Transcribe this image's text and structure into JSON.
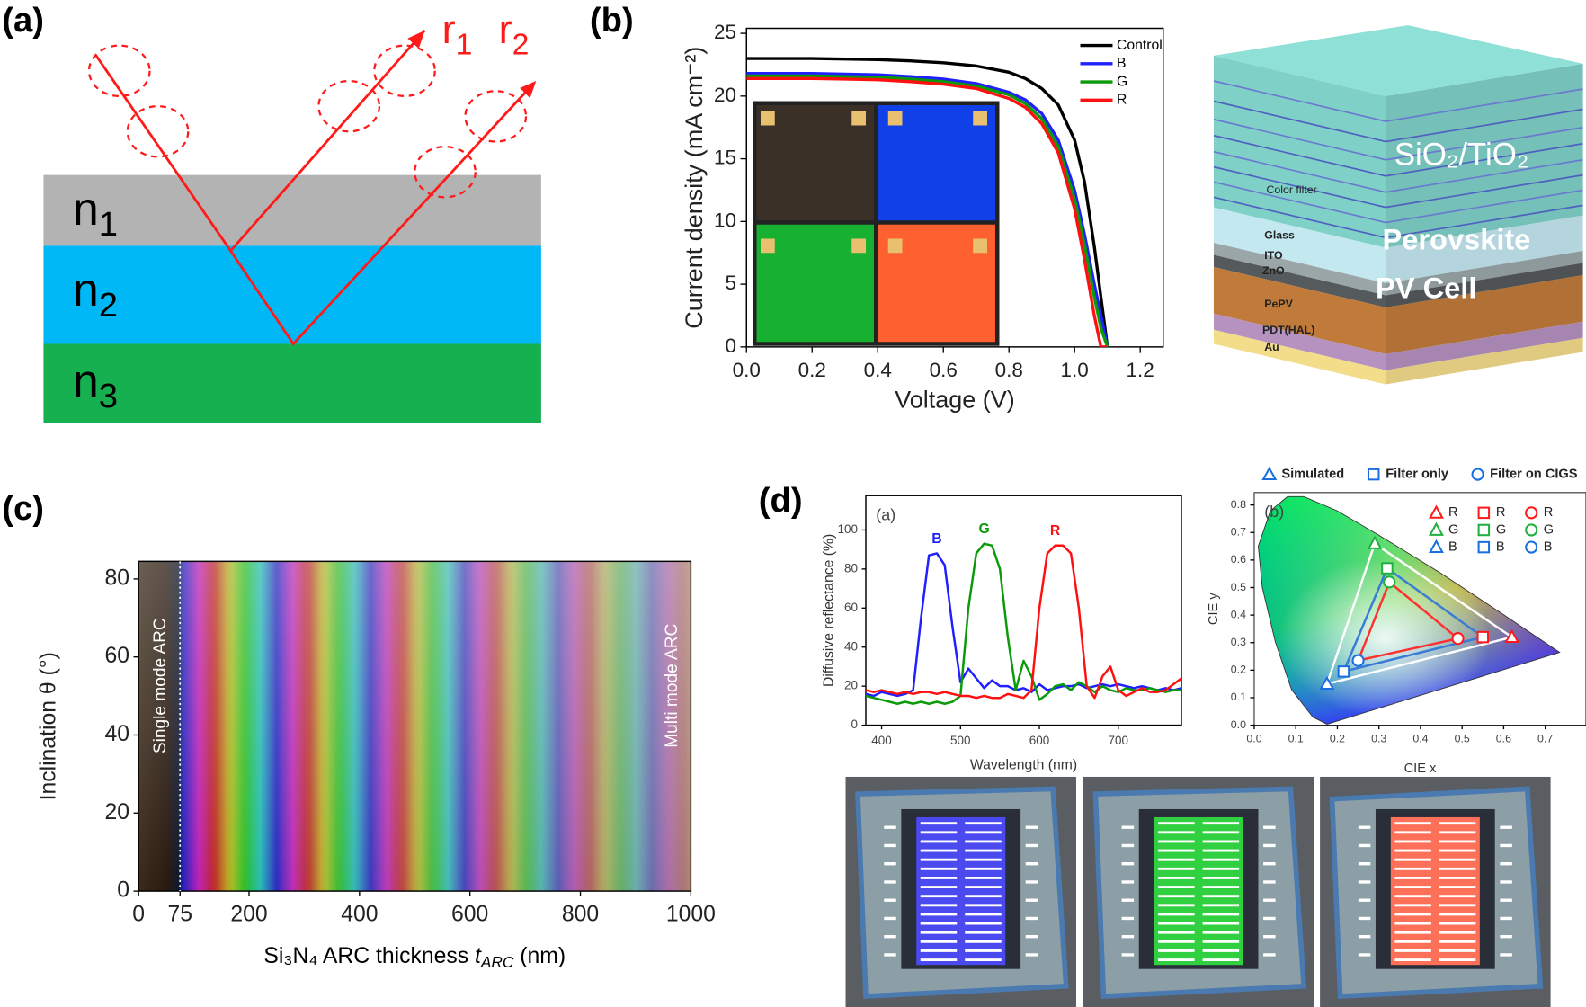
{
  "panel_labels": [
    "(a)",
    "(b)",
    "(c)",
    "(d)"
  ],
  "diagram_a": {
    "layers": [
      {
        "base": "n",
        "sub": "1"
      },
      {
        "base": "n",
        "sub": "2"
      },
      {
        "base": "n",
        "sub": "3"
      }
    ],
    "rays": [
      {
        "base": "r",
        "sub": "1"
      },
      {
        "base": "r",
        "sub": "2"
      }
    ]
  },
  "diagram_b": {
    "filter_label": "SiO₂/TiO₂",
    "layers": [
      "Color filter",
      "Glass",
      "ITO",
      "ZnO",
      "PePV",
      "PDT(HAL)",
      "Au"
    ],
    "device": [
      "Perovskite",
      "PV Cell"
    ]
  },
  "chart_data": [
    {
      "type": "line",
      "xlabel": "Voltage (V)",
      "ylabel": "Current density (mA cm⁻²)",
      "x": [
        0,
        0.1,
        0.2,
        0.3,
        0.4,
        0.5,
        0.6,
        0.7,
        0.8,
        0.85,
        0.9,
        0.95,
        1.0,
        1.03,
        1.06,
        1.08,
        1.1
      ],
      "series": [
        {
          "name": "Control",
          "color": "#000000",
          "values": [
            23,
            23,
            23,
            22.95,
            22.9,
            22.8,
            22.65,
            22.4,
            21.9,
            21.4,
            20.6,
            19.3,
            16.5,
            13.2,
            8,
            4,
            0
          ]
        },
        {
          "name": "B",
          "color": "#1f1fff",
          "values": [
            21.8,
            21.8,
            21.8,
            21.75,
            21.7,
            21.55,
            21.35,
            21,
            20.3,
            19.7,
            18.6,
            16.5,
            12.5,
            9,
            5,
            2.5,
            0
          ]
        },
        {
          "name": "G",
          "color": "#0a9a0a",
          "values": [
            21.6,
            21.6,
            21.6,
            21.55,
            21.5,
            21.35,
            21.15,
            20.8,
            20.1,
            19.4,
            18.2,
            16,
            11.8,
            8.2,
            4,
            1.5,
            0
          ]
        },
        {
          "name": "R",
          "color": "#ff1010",
          "values": [
            21.4,
            21.4,
            21.4,
            21.35,
            21.3,
            21.15,
            20.95,
            20.6,
            19.8,
            19.1,
            17.8,
            15.5,
            11,
            7,
            2.5,
            0,
            0
          ]
        }
      ],
      "xlim": [
        0,
        1.27
      ],
      "ylim": [
        0,
        25.4
      ],
      "xticks": [
        {
          "value": 0,
          "label": "0.0"
        },
        0.2,
        0.4,
        0.6,
        0.8,
        {
          "value": 1,
          "label": "1.0"
        },
        1.2
      ],
      "yticks": [
        0,
        5,
        10,
        15,
        20,
        25
      ],
      "legend": "upper right"
    },
    {
      "type": "image",
      "xlabel": {
        "pre": "Si₃N₄ ARC thickness ",
        "var": "t",
        "sub": "ARC",
        "post": " (nm)"
      },
      "ylabel": "Inclination θ (°)",
      "annotations": [
        "Single mode ARC",
        "Multi mode ARC"
      ],
      "xlim": [
        0,
        1000
      ],
      "ylim": [
        0,
        84.5
      ],
      "xticks": [
        0,
        75,
        200,
        400,
        600,
        800,
        1000
      ],
      "yticks": [
        0,
        20,
        40,
        60,
        80
      ]
    },
    {
      "type": "line",
      "panel_label": "(a)",
      "xlabel": "Wavelength (nm)",
      "ylabel": "Diffusive reflectance (%)",
      "x": [
        380,
        390,
        400,
        410,
        420,
        430,
        440,
        450,
        460,
        470,
        480,
        490,
        500,
        510,
        520,
        530,
        540,
        550,
        560,
        570,
        580,
        590,
        600,
        610,
        620,
        630,
        640,
        650,
        660,
        670,
        680,
        690,
        700,
        710,
        720,
        730,
        740,
        750,
        760,
        770,
        780
      ],
      "series": [
        {
          "name": "B",
          "color": "#1f1fff",
          "values": [
            16,
            15,
            17,
            16,
            15,
            16,
            18,
            55,
            87,
            88,
            82,
            50,
            22,
            29,
            24,
            19,
            23,
            20,
            20,
            18,
            19,
            17,
            21,
            18,
            19,
            20,
            20,
            21,
            19,
            20,
            21,
            20,
            21,
            20,
            19,
            20,
            19,
            18,
            19,
            18,
            19
          ]
        },
        {
          "name": "G",
          "color": "#0a9a0a",
          "values": [
            15,
            14,
            13,
            12,
            11,
            12,
            11,
            12,
            11,
            12,
            11,
            12,
            15,
            60,
            88,
            93,
            92,
            80,
            45,
            18,
            33,
            25,
            13,
            16,
            20,
            21,
            18,
            22,
            20,
            17,
            20,
            18,
            17,
            19,
            18,
            18,
            19,
            18,
            17,
            18,
            18
          ]
        },
        {
          "name": "R",
          "color": "#ff1010",
          "values": [
            18,
            17,
            18,
            17,
            16,
            17,
            16,
            17,
            17,
            16,
            17,
            16,
            15,
            15,
            14,
            15,
            14,
            14,
            16,
            15,
            14,
            18,
            60,
            88,
            92,
            92,
            88,
            60,
            20,
            14,
            25,
            30,
            18,
            15,
            17,
            19,
            17,
            17,
            18,
            21,
            24
          ]
        }
      ],
      "xlim": [
        380,
        780
      ],
      "ylim": [
        0,
        117.6
      ],
      "xticks": [
        400,
        500,
        600,
        700
      ],
      "yticks": [
        0,
        20,
        40,
        60,
        80,
        100
      ]
    },
    {
      "type": "scatter",
      "panel_label": "(b)",
      "xlabel": "CIE x",
      "ylabel": "CIE y",
      "point_names": [
        "R",
        "G",
        "B"
      ],
      "point_colors": [
        "#ff1a1a",
        "#20b040",
        "#1a6fe0"
      ],
      "legend_color": "#1a6fe0",
      "series": [
        {
          "name": "Simulated",
          "marker": "triangle",
          "line_color": "#ffffff",
          "x": [
            0.62,
            0.29,
            0.175
          ],
          "values": [
            0.32,
            0.66,
            0.15
          ]
        },
        {
          "name": "Filter only",
          "marker": "square",
          "line_color": "#3a7bd5",
          "x": [
            0.55,
            0.32,
            0.215
          ],
          "values": [
            0.32,
            0.57,
            0.195
          ]
        },
        {
          "name": "Filter on CIGS",
          "marker": "circle",
          "line_color": "#ff3030",
          "x": [
            0.49,
            0.325,
            0.25
          ],
          "values": [
            0.315,
            0.52,
            0.235
          ]
        }
      ],
      "xlim": [
        0,
        0.798
      ],
      "ylim": [
        0,
        0.845
      ],
      "xticks": [
        {
          "value": 0,
          "label": "0.0"
        },
        0.1,
        0.2,
        0.3,
        0.4,
        0.5,
        0.6,
        0.7
      ],
      "yticks": [
        {
          "value": 0,
          "label": "0.0"
        },
        0.1,
        0.2,
        0.3,
        0.4,
        0.5,
        0.6,
        0.7,
        0.8
      ]
    }
  ]
}
